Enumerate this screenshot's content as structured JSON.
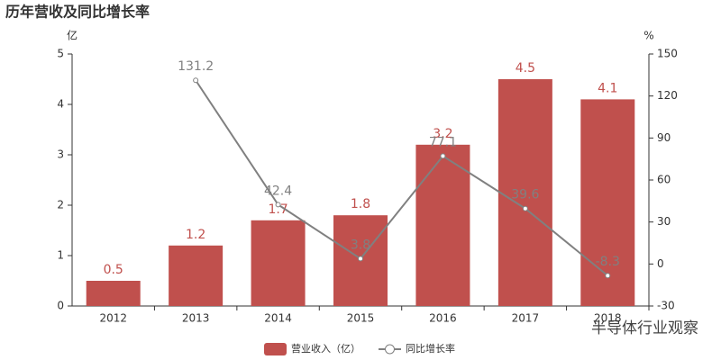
{
  "chart_data": {
    "type": "bar",
    "title": "历年营收及同比增长率",
    "ylabel": "亿",
    "y2label": "%",
    "categories": [
      "2012",
      "2013",
      "2014",
      "2015",
      "2016",
      "2017",
      "2018"
    ],
    "series": [
      {
        "name": "营业收入（亿）",
        "type": "bar",
        "color": "#c0504d",
        "values": [
          0.5,
          1.2,
          1.7,
          1.8,
          3.2,
          4.5,
          4.1
        ]
      },
      {
        "name": "同比增长率",
        "type": "line",
        "axis": "y2",
        "color": "#808080",
        "values": [
          null,
          131.2,
          42.4,
          3.8,
          77.1,
          39.6,
          -8.3
        ]
      }
    ],
    "ylim": [
      0,
      5
    ],
    "yticks": [
      0,
      1,
      2,
      3,
      4,
      5
    ],
    "y2lim": [
      -30,
      150
    ],
    "y2ticks": [
      -30,
      0,
      30,
      60,
      90,
      120,
      150
    ],
    "grid": false,
    "legend": "bottom",
    "watermark": "半导体行业观察"
  }
}
